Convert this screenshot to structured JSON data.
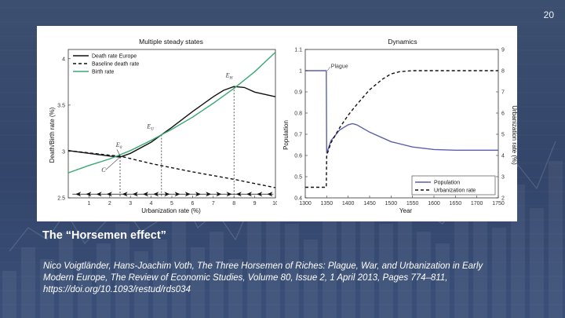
{
  "slide": {
    "page_number": "20",
    "caption_title": "The “Horsemen effect”",
    "citation": "Nico Voigtländer, Hans-Joachim Voth, The Three Horsemen of Riches: Plague, War, and Urbanization in Early Modern Europe, The Review of Economic Studies, Volume 80, Issue 2, 1 April 2013, Pages 774–811, https://doi.org/10.1093/restud/rds034",
    "colors": {
      "background": "#3a4d72",
      "birth_rate": "#3aa874",
      "population": "#5c5fae"
    }
  },
  "chart_data": [
    {
      "type": "line",
      "title": "Multiple steady states",
      "xlabel": "Urbanization rate (%)",
      "ylabel": "Death/Birth rate (%)",
      "xlim": [
        0,
        10
      ],
      "ylim": [
        2.5,
        4.1
      ],
      "xticks": [
        "1",
        "2",
        "3",
        "4",
        "5",
        "6",
        "7",
        "8",
        "9",
        "10"
      ],
      "yticks": [
        "2.5",
        "3",
        "3.5",
        "4"
      ],
      "legend": "top-left",
      "series": [
        {
          "name": "Death rate Europe",
          "style": "solid",
          "color": "#111111",
          "x": [
            0,
            1,
            2,
            2.5,
            3,
            4,
            5,
            6,
            7,
            7.5,
            8,
            8.5,
            9,
            10
          ],
          "y": [
            3.01,
            2.98,
            2.95,
            2.94,
            2.98,
            3.1,
            3.26,
            3.43,
            3.59,
            3.66,
            3.7,
            3.69,
            3.64,
            3.59
          ]
        },
        {
          "name": "Baseline death rate",
          "style": "dashed",
          "color": "#111111",
          "x": [
            0,
            2,
            2.5,
            4,
            6,
            8,
            10
          ],
          "y": [
            3.01,
            2.96,
            2.95,
            2.87,
            2.78,
            2.7,
            2.61
          ]
        },
        {
          "name": "Birth rate",
          "style": "solid",
          "color": "#3aa874",
          "x": [
            0,
            1,
            2,
            3,
            4,
            5,
            6,
            7,
            8,
            9,
            10
          ],
          "y": [
            2.77,
            2.85,
            2.92,
            3.01,
            3.12,
            3.24,
            3.37,
            3.52,
            3.68,
            3.86,
            4.07
          ]
        }
      ],
      "annotations": [
        {
          "text": "E_H",
          "x": 7.6,
          "y": 3.8
        },
        {
          "text": "E_U",
          "x": 3.8,
          "y": 3.25
        },
        {
          "text": "E_0",
          "x": 2.3,
          "y": 3.05
        },
        {
          "text": "C",
          "x": 1.6,
          "y": 2.78
        }
      ],
      "dotted_verticals": [
        2.5,
        4.5,
        8.0
      ],
      "arrows_row": {
        "y": 2.54,
        "left_x": [
          0.5,
          1.0,
          1.5,
          2.0,
          2.75,
          3.25,
          3.75,
          4.25,
          8.25,
          8.75,
          9.25,
          9.75
        ],
        "right_x": [
          4.75,
          5.25,
          5.75,
          6.25,
          6.75,
          7.25,
          7.75
        ]
      }
    },
    {
      "type": "line",
      "title": "Dynamics",
      "xlabel": "Year",
      "ylabel_left": "Population",
      "ylabel_right": "Urbanization rate (%)",
      "xlim": [
        1300,
        1750
      ],
      "ylim_left": [
        0.4,
        1.1
      ],
      "ylim_right": [
        2,
        9
      ],
      "xticks": [
        "1300",
        "1350",
        "1400",
        "1450",
        "1500",
        "1550",
        "1600",
        "1650",
        "1700",
        "1750"
      ],
      "yticks_left": [
        "0.4",
        "0.5",
        "0.6",
        "0.7",
        "0.8",
        "0.9",
        "1",
        "1.1"
      ],
      "yticks_right": [
        "2",
        "3",
        "4",
        "5",
        "6",
        "7",
        "8",
        "9"
      ],
      "legend": "bottom-right",
      "annotations": [
        {
          "text": "Plague",
          "x": 1360,
          "y": 1.02
        }
      ],
      "series": [
        {
          "name": "Population",
          "axis": "left",
          "style": "solid",
          "color": "#5c5fae",
          "x": [
            1300,
            1349,
            1350,
            1360,
            1380,
            1400,
            1410,
            1420,
            1450,
            1500,
            1550,
            1600,
            1650,
            1700,
            1750
          ],
          "y": [
            1.0,
            1.0,
            0.61,
            0.67,
            0.72,
            0.745,
            0.75,
            0.745,
            0.71,
            0.665,
            0.64,
            0.628,
            0.625,
            0.625,
            0.625
          ]
        },
        {
          "name": "Urbanization rate",
          "axis": "right",
          "style": "dashed",
          "color": "#111111",
          "x": [
            1300,
            1349,
            1350,
            1360,
            1380,
            1400,
            1420,
            1450,
            1480,
            1500,
            1520,
            1550,
            1600,
            1650,
            1700,
            1750
          ],
          "y": [
            2.5,
            2.5,
            4.0,
            4.6,
            5.3,
            5.9,
            6.4,
            7.1,
            7.6,
            7.85,
            7.95,
            8.0,
            8.0,
            8.0,
            8.0,
            8.0
          ]
        }
      ]
    }
  ]
}
